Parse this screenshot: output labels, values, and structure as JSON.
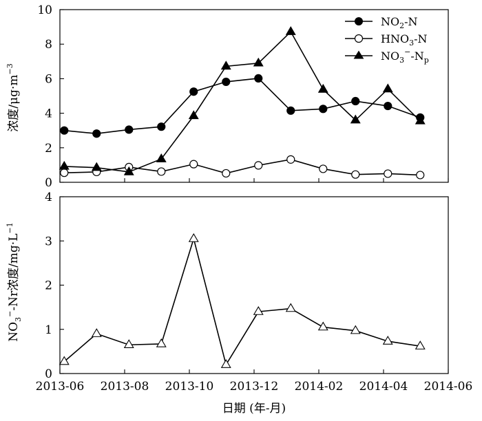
{
  "chart_data": [
    {
      "type": "line",
      "ylabel": "浓度/μg·m⁻³",
      "ylim": [
        0,
        10
      ],
      "yticks": [
        "0",
        "2",
        "4",
        "6",
        "8",
        "10"
      ],
      "xlim": [
        "2013-06",
        "2014-06"
      ],
      "legend_position": "top-right",
      "x": [
        "2013-06-05",
        "2013-07-05",
        "2013-08-05",
        "2013-09-05",
        "2013-10-05",
        "2013-11-05",
        "2013-12-05",
        "2014-01-05",
        "2014-02-05",
        "2014-03-05",
        "2014-04-05",
        "2014-05-05"
      ],
      "series": [
        {
          "name": "NO2-N",
          "legend_main": "NO",
          "legend_sub": "2",
          "legend_tail": "-N",
          "marker": "filled-circle",
          "values": [
            3.0,
            2.82,
            3.05,
            3.22,
            5.25,
            5.82,
            6.02,
            4.15,
            4.25,
            4.7,
            4.42,
            3.75
          ]
        },
        {
          "name": "HNO3-N",
          "legend_main": "HNO",
          "legend_sub": "3",
          "legend_tail": "-N",
          "marker": "open-circle",
          "values": [
            0.55,
            0.6,
            0.88,
            0.62,
            1.05,
            0.52,
            0.98,
            1.32,
            0.78,
            0.45,
            0.5,
            0.42
          ]
        },
        {
          "name": "NO3−-Np",
          "legend_main": "NO",
          "legend_sub": "3",
          "legend_sup": "−",
          "legend_tail": "-N",
          "legend_tail_sub": "p",
          "marker": "filled-triangle",
          "values": [
            0.92,
            0.85,
            0.6,
            1.35,
            3.85,
            6.72,
            6.9,
            8.72,
            5.38,
            3.6,
            5.4,
            3.55
          ]
        }
      ]
    },
    {
      "type": "line",
      "ylabel": "NO₃⁻-Nr浓度/mg·L⁻¹",
      "ylim": [
        0,
        4
      ],
      "yticks": [
        "0",
        "1",
        "2",
        "3",
        "4"
      ],
      "xlim": [
        "2013-06",
        "2014-06"
      ],
      "x": [
        "2013-06-05",
        "2013-07-05",
        "2013-08-05",
        "2013-09-05",
        "2013-10-05",
        "2013-11-05",
        "2013-12-05",
        "2014-01-05",
        "2014-02-05",
        "2014-03-05",
        "2014-04-05",
        "2014-05-05"
      ],
      "series": [
        {
          "marker": "open-triangle",
          "values": [
            0.27,
            0.9,
            0.65,
            0.67,
            3.05,
            0.2,
            1.4,
            1.47,
            1.05,
            0.97,
            0.73,
            0.62
          ]
        }
      ]
    }
  ],
  "xaxis": {
    "ticks": [
      "2013-06",
      "2013-08",
      "2013-10",
      "2013-12",
      "2014-02",
      "2014-04",
      "2014-06"
    ],
    "label": "日期 (年-月)"
  }
}
